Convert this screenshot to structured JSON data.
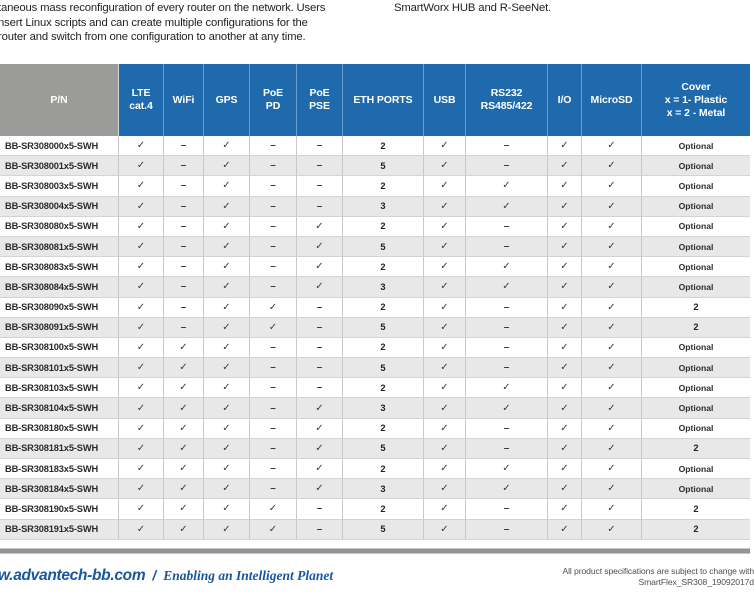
{
  "intro": {
    "left_lines": [
      "taneous mass reconfiguration of every router on the network. Users",
      "nsert Linux scripts and can create multiple configurations for the",
      "router and switch from one configuration to another at any time."
    ],
    "right_line": "SmartWorx HUB and R-SeeNet."
  },
  "table": {
    "columns": [
      {
        "key": "pn",
        "label": [
          "P/N"
        ],
        "width": 119
      },
      {
        "key": "lte",
        "label": [
          "LTE",
          "cat.4"
        ],
        "width": 45
      },
      {
        "key": "wifi",
        "label": [
          "WiFi"
        ],
        "width": 40
      },
      {
        "key": "gps",
        "label": [
          "GPS"
        ],
        "width": 46
      },
      {
        "key": "poe-pd",
        "label": [
          "PoE",
          "PD"
        ],
        "width": 47
      },
      {
        "key": "poe-pse",
        "label": [
          "PoE",
          "PSE"
        ],
        "width": 46
      },
      {
        "key": "eth",
        "label": [
          "ETH PORTS"
        ],
        "width": 81
      },
      {
        "key": "usb",
        "label": [
          "USB"
        ],
        "width": 42
      },
      {
        "key": "rs232",
        "label": [
          "RS232",
          "RS485/422"
        ],
        "width": 82
      },
      {
        "key": "io",
        "label": [
          "I/O"
        ],
        "width": 34
      },
      {
        "key": "microsd",
        "label": [
          "MicroSD"
        ],
        "width": 60
      },
      {
        "key": "cover",
        "label": [
          "Cover",
          "x = 1- Plastic",
          "x = 2 - Metal"
        ],
        "width": 108
      }
    ],
    "rows": [
      {
        "pn": "BB-SR308000x5-SWH",
        "cells": [
          "✓",
          "–",
          "✓",
          "–",
          "–",
          "2",
          "✓",
          "–",
          "✓",
          "✓",
          "Optional"
        ]
      },
      {
        "pn": "BB-SR308001x5-SWH",
        "cells": [
          "✓",
          "–",
          "✓",
          "–",
          "–",
          "5",
          "✓",
          "–",
          "✓",
          "✓",
          "Optional"
        ]
      },
      {
        "pn": "BB-SR308003x5-SWH",
        "cells": [
          "✓",
          "–",
          "✓",
          "–",
          "–",
          "2",
          "✓",
          "✓",
          "✓",
          "✓",
          "Optional"
        ]
      },
      {
        "pn": "BB-SR308004x5-SWH",
        "cells": [
          "✓",
          "–",
          "✓",
          "–",
          "–",
          "3",
          "✓",
          "✓",
          "✓",
          "✓",
          "Optional"
        ]
      },
      {
        "pn": "BB-SR308080x5-SWH",
        "cells": [
          "✓",
          "–",
          "✓",
          "–",
          "✓",
          "2",
          "✓",
          "–",
          "✓",
          "✓",
          "Optional"
        ]
      },
      {
        "pn": "BB-SR308081x5-SWH",
        "cells": [
          "✓",
          "–",
          "✓",
          "–",
          "✓",
          "5",
          "✓",
          "–",
          "✓",
          "✓",
          "Optional"
        ]
      },
      {
        "pn": "BB-SR308083x5-SWH",
        "cells": [
          "✓",
          "–",
          "✓",
          "–",
          "✓",
          "2",
          "✓",
          "✓",
          "✓",
          "✓",
          "Optional"
        ]
      },
      {
        "pn": "BB-SR308084x5-SWH",
        "cells": [
          "✓",
          "–",
          "✓",
          "–",
          "✓",
          "3",
          "✓",
          "✓",
          "✓",
          "✓",
          "Optional"
        ]
      },
      {
        "pn": "BB-SR308090x5-SWH",
        "cells": [
          "✓",
          "–",
          "✓",
          "✓",
          "–",
          "2",
          "✓",
          "–",
          "✓",
          "✓",
          "2"
        ]
      },
      {
        "pn": "BB-SR308091x5-SWH",
        "cells": [
          "✓",
          "–",
          "✓",
          "✓",
          "–",
          "5",
          "✓",
          "–",
          "✓",
          "✓",
          "2"
        ]
      },
      {
        "pn": "BB-SR308100x5-SWH",
        "cells": [
          "✓",
          "✓",
          "✓",
          "–",
          "–",
          "2",
          "✓",
          "–",
          "✓",
          "✓",
          "Optional"
        ]
      },
      {
        "pn": "BB-SR308101x5-SWH",
        "cells": [
          "✓",
          "✓",
          "✓",
          "–",
          "–",
          "5",
          "✓",
          "–",
          "✓",
          "✓",
          "Optional"
        ]
      },
      {
        "pn": "BB-SR308103x5-SWH",
        "cells": [
          "✓",
          "✓",
          "✓",
          "–",
          "–",
          "2",
          "✓",
          "✓",
          "✓",
          "✓",
          "Optional"
        ]
      },
      {
        "pn": "BB-SR308104x5-SWH",
        "cells": [
          "✓",
          "✓",
          "✓",
          "–",
          "✓",
          "3",
          "✓",
          "✓",
          "✓",
          "✓",
          "Optional"
        ]
      },
      {
        "pn": "BB-SR308180x5-SWH",
        "cells": [
          "✓",
          "✓",
          "✓",
          "–",
          "✓",
          "2",
          "✓",
          "–",
          "✓",
          "✓",
          "Optional"
        ]
      },
      {
        "pn": "BB-SR308181x5-SWH",
        "cells": [
          "✓",
          "✓",
          "✓",
          "–",
          "✓",
          "5",
          "✓",
          "–",
          "✓",
          "✓",
          "2"
        ]
      },
      {
        "pn": "BB-SR308183x5-SWH",
        "cells": [
          "✓",
          "✓",
          "✓",
          "–",
          "✓",
          "2",
          "✓",
          "✓",
          "✓",
          "✓",
          "Optional"
        ]
      },
      {
        "pn": "BB-SR308184x5-SWH",
        "cells": [
          "✓",
          "✓",
          "✓",
          "–",
          "✓",
          "3",
          "✓",
          "✓",
          "✓",
          "✓",
          "Optional"
        ]
      },
      {
        "pn": "BB-SR308190x5-SWH",
        "cells": [
          "✓",
          "✓",
          "✓",
          "✓",
          "–",
          "2",
          "✓",
          "–",
          "✓",
          "✓",
          "2"
        ]
      },
      {
        "pn": "BB-SR308191x5-SWH",
        "cells": [
          "✓",
          "✓",
          "✓",
          "✓",
          "–",
          "5",
          "✓",
          "–",
          "✓",
          "✓",
          "2"
        ]
      }
    ]
  },
  "footer": {
    "website": "w.advantech-bb.com",
    "separator": "/",
    "slogan": "Enabling an Intelligent Planet",
    "note_lines": [
      "All product specifications are subject to change with",
      "SmartFlex_SR308_19092017d"
    ]
  },
  "colors": {
    "header_blue": "#1e6aad",
    "header_gray": "#9b9b9a",
    "row_alt": "#e8e8e8",
    "grid_line": "#c9c9c9",
    "rule_gray": "#949494",
    "footer_blue": "#17579e",
    "footer_note_gray": "#4f4f4f"
  }
}
